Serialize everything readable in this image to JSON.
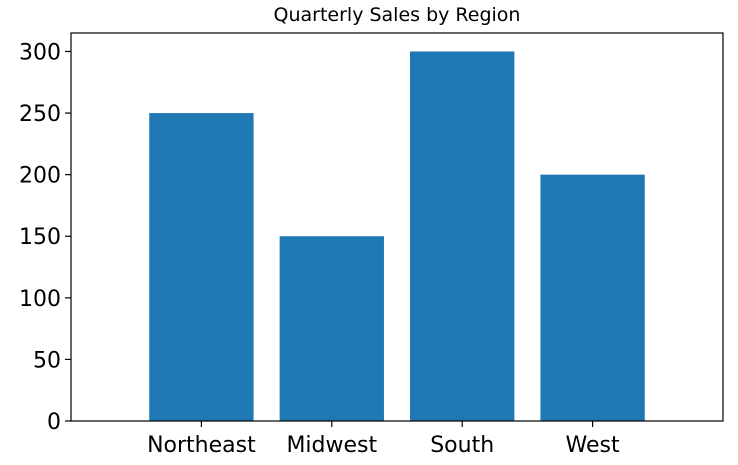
{
  "chart_data": {
    "type": "bar",
    "title": "Quarterly Sales by Region",
    "xlabel": "",
    "ylabel": "",
    "categories": [
      "Northeast",
      "Midwest",
      "South",
      "West"
    ],
    "values": [
      250,
      150,
      300,
      200
    ],
    "ylim": [
      0,
      300
    ],
    "yticks": [
      0,
      50,
      100,
      150,
      200,
      250,
      300
    ],
    "grid": false,
    "bar_color": "#1f77b4"
  }
}
